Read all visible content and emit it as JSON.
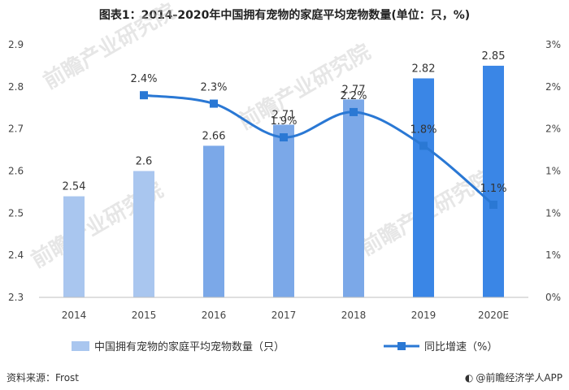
{
  "title": "图表1：2014-2020年中国拥有宠物的家庭平均宠物数量(单位：只，%)",
  "footer": {
    "source": "资料来源：Frost",
    "brand": "@前瞻经济学人APP"
  },
  "watermark": "前瞻产业研究院",
  "colors": {
    "bar_light": "#a9c6ef",
    "bar_mid": "#7ba8e8",
    "bar_dark": "#3a86e6",
    "line": "#2a78d4"
  },
  "chart_data": {
    "type": "bar",
    "categories": [
      "2014",
      "2015",
      "2016",
      "2017",
      "2018",
      "2019",
      "2020E"
    ],
    "series": [
      {
        "name": "中国拥有宠物的家庭平均宠物数量（只）",
        "type": "bar",
        "axis": "left",
        "values": [
          2.54,
          2.6,
          2.66,
          2.71,
          2.77,
          2.82,
          2.85
        ],
        "labels": [
          "2.54",
          "2.6",
          "2.66",
          "2.71",
          "2.77",
          "2.82",
          "2.85"
        ]
      },
      {
        "name": "同比增速（%）",
        "type": "line",
        "axis": "right",
        "values": [
          null,
          2.4,
          2.3,
          1.9,
          2.2,
          1.8,
          1.1
        ],
        "labels": [
          "",
          "2.4%",
          "2.3%",
          "1.9%",
          "2.2%",
          "1.8%",
          "1.1%"
        ]
      }
    ],
    "y_left": {
      "min": 2.3,
      "max": 2.9,
      "ticks": [
        2.9,
        2.8,
        2.7,
        2.6,
        2.5,
        2.4,
        2.3
      ],
      "tick_labels": [
        "2.9",
        "2.8",
        "2.7",
        "2.6",
        "2.5",
        "2.4",
        "2.3"
      ]
    },
    "y_right": {
      "min": 0,
      "max": 3,
      "tick_labels": [
        "3%",
        "2%",
        "2%",
        "1%",
        "1%",
        "1%",
        "0%"
      ]
    },
    "grid": false,
    "legend_position": "bottom"
  }
}
